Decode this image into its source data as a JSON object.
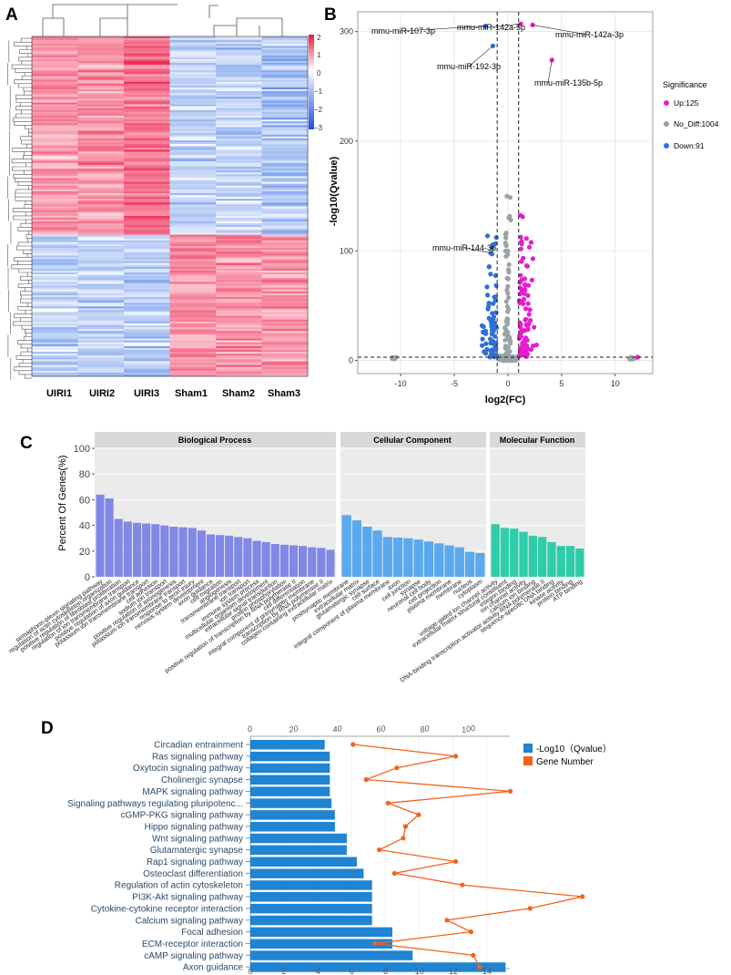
{
  "panels": {
    "a": "A",
    "b": "B",
    "c": "C",
    "d": "D"
  },
  "colors": {
    "up": "#e91bd2",
    "no_diff": "#9aa3a3",
    "down": "#2f6fd6",
    "bp": "#8188e6",
    "cc": "#5aa9ee",
    "mf": "#2ecda9",
    "kegg_bar": "#1f84d2",
    "kegg_line": "#f2621f",
    "heat_high": "#f02f57",
    "heat_mid": "#ffffff",
    "heat_low": "#1f5fe0"
  },
  "heatmap": {
    "columns": [
      "UIRI1",
      "UIRI2",
      "UIRI3",
      "Sham1",
      "Sham2",
      "Sham3"
    ],
    "colorbar_ticks": [
      "2",
      "1",
      "0",
      "−1",
      "−2",
      "−3"
    ]
  },
  "volcano": {
    "xlabel": "log2(FC)",
    "ylabel": "-log10(Qvalue)",
    "xlim": [
      -14,
      13.5
    ],
    "ylim": [
      -12,
      318
    ],
    "xticks": [
      "-10",
      "-5",
      "0",
      "5",
      "10"
    ],
    "yticks": [
      "0",
      "100",
      "200",
      "300"
    ],
    "legend_title": "Significance",
    "legend": [
      {
        "key": "up",
        "label": "Up:125"
      },
      {
        "key": "no_diff",
        "label": "No_Diff:1004"
      },
      {
        "key": "down",
        "label": "Down:91"
      }
    ],
    "annotations": [
      {
        "text": "mmu-miR-107-3p",
        "x": -2.1,
        "y": 305
      },
      {
        "text": "mmu-miR-142a-5p",
        "x": 1.2,
        "y": 307
      },
      {
        "text": "mmu-miR-142a-3p",
        "x": 2.3,
        "y": 306
      },
      {
        "text": "mmu-miR-192-3p",
        "x": -1.4,
        "y": 287
      },
      {
        "text": "mmu-miR-135b-5p",
        "x": 4.1,
        "y": 274
      },
      {
        "text": "mmu-miR-144-3p",
        "x": -1.6,
        "y": 98
      }
    ]
  },
  "go": {
    "ylabel": "Percent Of Genes(%)",
    "yticks": [
      "0",
      "20",
      "40",
      "60",
      "80",
      "100"
    ],
    "categories": [
      "Biological Process",
      "Cellular Component",
      "Molecular Function"
    ],
    "terms": [
      {
        "label": "semaphorin-plexin signaling pathway",
        "value": 64,
        "group": "bp"
      },
      {
        "label": "regulation of actin cytoskeleton organization",
        "value": 61,
        "group": "bp"
      },
      {
        "label": "positive regulation of fibroblast proliferation",
        "value": 45,
        "group": "bp"
      },
      {
        "label": "regulation of ion transmembrane transport",
        "value": 43,
        "group": "bp"
      },
      {
        "label": "positive regulation of axon guidance",
        "value": 42,
        "group": "bp"
      },
      {
        "label": "potassium ion transmembrane transport",
        "value": 41.5,
        "group": "bp"
      },
      {
        "label": "cell adhesion",
        "value": 41,
        "group": "bp"
      },
      {
        "label": "sodium ion transport",
        "value": 40,
        "group": "bp"
      },
      {
        "label": "positive regulation of axonogenesis",
        "value": 39,
        "group": "bp"
      },
      {
        "label": "potassium ion transmembrane transport",
        "value": 38.5,
        "group": "bp"
      },
      {
        "label": "response to axon injury",
        "value": 38,
        "group": "bp"
      },
      {
        "label": "nervous system development",
        "value": 36,
        "group": "bp"
      },
      {
        "label": "axon guidance",
        "value": 33,
        "group": "bp"
      },
      {
        "label": "cell migration",
        "value": 32.5,
        "group": "bp"
      },
      {
        "label": "angiogenesis",
        "value": 32,
        "group": "bp"
      },
      {
        "label": "transmembrane transport",
        "value": 31,
        "group": "bp"
      },
      {
        "label": "ion transport",
        "value": 30,
        "group": "bp"
      },
      {
        "label": "immune system process",
        "value": 28,
        "group": "bp"
      },
      {
        "label": "multicellular organism development",
        "value": 27,
        "group": "bp"
      },
      {
        "label": "intracellular signal transduction",
        "value": 25.5,
        "group": "bp"
      },
      {
        "label": "protein phosphorylation",
        "value": 25,
        "group": "bp"
      },
      {
        "label": "positive regulation of transcription by RNA polymerase II",
        "value": 24.5,
        "group": "bp"
      },
      {
        "label": "cell differentiation",
        "value": 24,
        "group": "bp"
      },
      {
        "label": "integral component of presynaptic membrane",
        "value": 23,
        "group": "bp"
      },
      {
        "label": "transcription by RNA polymerase II",
        "value": 22.5,
        "group": "bp"
      },
      {
        "label": "collagen-containing extracellular matrix",
        "value": 21,
        "group": "bp"
      },
      {
        "label": "postsynaptic membrane",
        "value": 48,
        "group": "cc"
      },
      {
        "label": "extracellular matrix",
        "value": 44,
        "group": "cc"
      },
      {
        "label": "glutamatergic synapse",
        "value": 39,
        "group": "cc"
      },
      {
        "label": "cell surface",
        "value": 36,
        "group": "cc"
      },
      {
        "label": "integral component of plasma membrane",
        "value": 31,
        "group": "cc"
      },
      {
        "label": "axon",
        "value": 30.5,
        "group": "cc"
      },
      {
        "label": "cell junction",
        "value": 30,
        "group": "cc"
      },
      {
        "label": "synapse",
        "value": 29,
        "group": "cc"
      },
      {
        "label": "neuronal cell body",
        "value": 27.5,
        "group": "cc"
      },
      {
        "label": "cell projection",
        "value": 26,
        "group": "cc"
      },
      {
        "label": "plasma membrane",
        "value": 24.5,
        "group": "cc"
      },
      {
        "label": "membrane",
        "value": 23,
        "group": "cc"
      },
      {
        "label": "nucleus",
        "value": 19.5,
        "group": "cc"
      },
      {
        "label": "cytoplasm",
        "value": 18.5,
        "group": "cc"
      },
      {
        "label": "voltage-gated ion channel activity",
        "value": 41,
        "group": "mf"
      },
      {
        "label": "extracellular matrix structural constituent",
        "value": 38,
        "group": "mf"
      },
      {
        "label": "integrin binding",
        "value": 37.5,
        "group": "mf"
      },
      {
        "label": "ion channel activity",
        "value": 35,
        "group": "mf"
      },
      {
        "label": "calcium ion binding",
        "value": 32,
        "group": "mf"
      },
      {
        "label": "DNA-binding transcription activator activity RNA polymerase II",
        "value": 31,
        "group": "mf"
      },
      {
        "label": "sequence-specific DNA binding",
        "value": 27,
        "group": "mf"
      },
      {
        "label": "kinase activity",
        "value": 24,
        "group": "mf"
      },
      {
        "label": "protein binding",
        "value": 24,
        "group": "mf"
      },
      {
        "label": "ATP binding",
        "value": 22,
        "group": "mf"
      }
    ]
  },
  "kegg": {
    "legend": [
      "-Log10（Qvalue）",
      "Gene Number"
    ],
    "bottom_ticks": [
      "0",
      "2",
      "4",
      "6",
      "8",
      "10",
      "12",
      "14"
    ],
    "top_ticks": [
      "0",
      "20",
      "40",
      "60",
      "80",
      "100"
    ],
    "pathways": [
      "Circadian entrainment",
      "Ras signaling pathway",
      "Oxytocin signaling pathway",
      "Cholinergic synapse",
      "MAPK signaling pathway",
      "Signaling pathways regulating pluripotenc...",
      "cGMP-PKG signaling pathway",
      "Hippo signaling pathway",
      "Wnt signaling pathway",
      "Glutamatergic synapse",
      "Rap1 signaling pathway",
      "Osteoclast differentiation",
      "Regulation of actin cytoskeleton",
      "PI3K-Akt signaling pathway",
      "Cytokine-cytokine receptor interaction",
      "Calcium signaling pathway",
      "Focal adhesion",
      "ECM-receptor interaction",
      "cAMP signaling pathway",
      "Axon guidance"
    ],
    "qvalue": [
      4.4,
      4.7,
      4.7,
      4.7,
      4.7,
      4.8,
      5.0,
      5.0,
      5.7,
      5.7,
      6.3,
      6.7,
      7.2,
      7.2,
      7.2,
      7.2,
      8.4,
      8.4,
      9.6,
      15.1
    ],
    "gene_number": [
      47,
      94,
      67,
      53,
      119,
      63,
      77,
      71,
      70,
      59,
      94,
      66,
      97,
      152,
      128,
      90,
      101,
      57,
      102,
      105
    ]
  }
}
